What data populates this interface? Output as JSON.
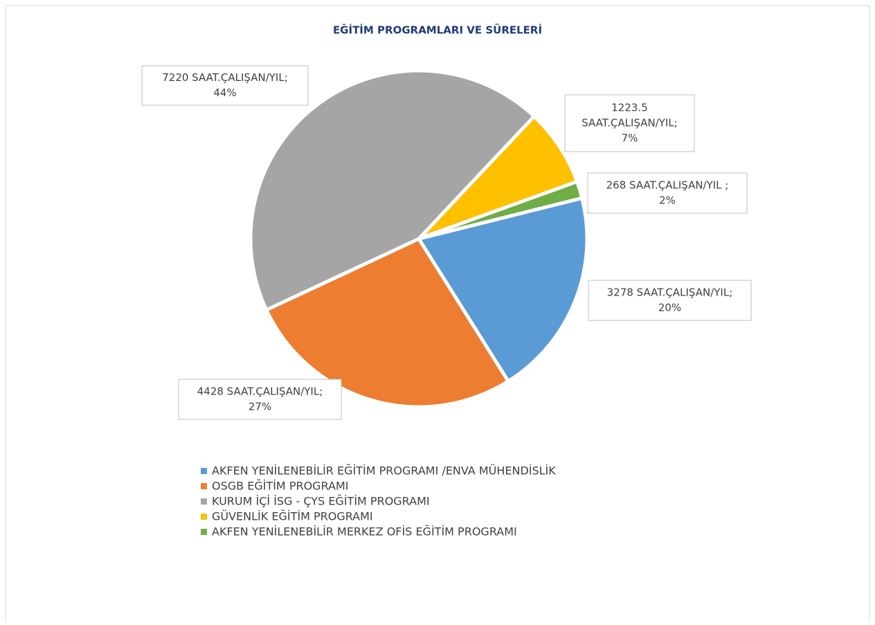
{
  "chart_data": {
    "type": "pie",
    "title": "EĞİTİM PROGRAMLARI VE SÜRELERİ",
    "categories": [
      "AKFEN YENİLENEBİLİR EĞİTİM PROGRAMI /ENVA MÜHENDİSLİK",
      "OSGB EĞİTİM PROGRAMI",
      "KURUM İÇİ İSG - ÇYS EĞİTİM PROGRAMI",
      "GÜVENLİK EĞİTİM PROGRAMI",
      "AKFEN YENİLENEBİLİR MERKEZ OFİS EĞİTİM PROGRAMI"
    ],
    "values": [
      3278,
      4428,
      7220,
      1223.5,
      268
    ],
    "value_labels": [
      [
        "3278 SAAT.ÇALIŞAN/YIL;",
        "20%"
      ],
      [
        "4428 SAAT.ÇALIŞAN/YIL;",
        "27%"
      ],
      [
        "7220 SAAT.ÇALIŞAN/YIL;",
        "44%"
      ],
      [
        "1223.5",
        "SAAT.ÇALIŞAN/YIL;",
        "7%"
      ],
      [
        "268 SAAT.ÇALIŞAN/YIL ;",
        "2%"
      ]
    ],
    "colors": [
      "#5b9bd5",
      "#ed7d31",
      "#a5a5a5",
      "#ffc000",
      "#70ad47"
    ],
    "legend": "bottom"
  }
}
